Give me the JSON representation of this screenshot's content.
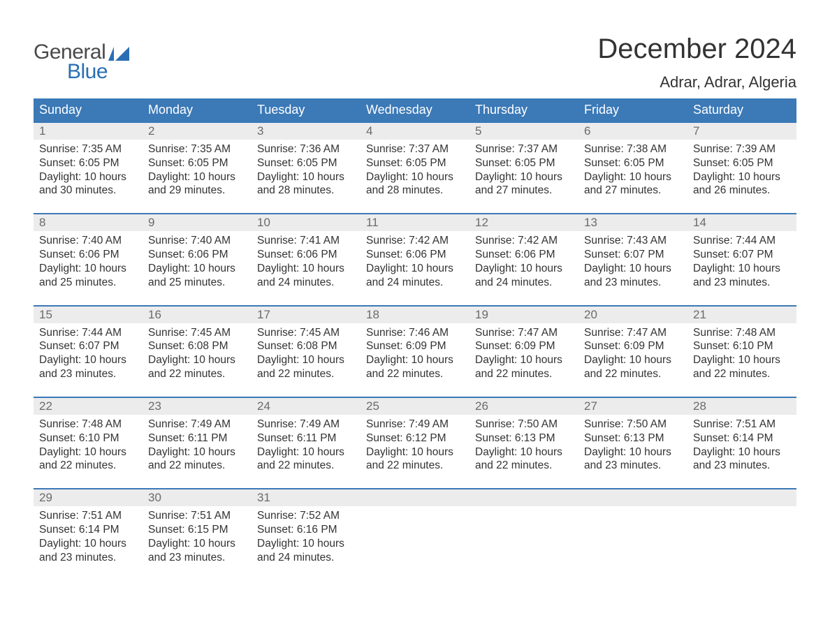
{
  "logo": {
    "general": "General",
    "blue": "Blue",
    "icon_color": "#2a6fb5"
  },
  "title": "December 2024",
  "location": "Adrar, Adrar, Algeria",
  "colors": {
    "header_bg": "#3b79b7",
    "header_text": "#ffffff",
    "daynum_bg": "#ececec",
    "daynum_text": "#6b6b6b",
    "body_text": "#333333",
    "row_border": "#3b79b7",
    "page_bg": "#ffffff"
  },
  "typography": {
    "title_fontsize": 40,
    "location_fontsize": 22,
    "dayheader_fontsize": 18,
    "daynum_fontsize": 17,
    "body_fontsize": 15.5
  },
  "day_headers": [
    "Sunday",
    "Monday",
    "Tuesday",
    "Wednesday",
    "Thursday",
    "Friday",
    "Saturday"
  ],
  "weeks": [
    [
      {
        "n": "1",
        "sunrise": "7:35 AM",
        "sunset": "6:05 PM",
        "daylight": "10 hours and 30 minutes."
      },
      {
        "n": "2",
        "sunrise": "7:35 AM",
        "sunset": "6:05 PM",
        "daylight": "10 hours and 29 minutes."
      },
      {
        "n": "3",
        "sunrise": "7:36 AM",
        "sunset": "6:05 PM",
        "daylight": "10 hours and 28 minutes."
      },
      {
        "n": "4",
        "sunrise": "7:37 AM",
        "sunset": "6:05 PM",
        "daylight": "10 hours and 28 minutes."
      },
      {
        "n": "5",
        "sunrise": "7:37 AM",
        "sunset": "6:05 PM",
        "daylight": "10 hours and 27 minutes."
      },
      {
        "n": "6",
        "sunrise": "7:38 AM",
        "sunset": "6:05 PM",
        "daylight": "10 hours and 27 minutes."
      },
      {
        "n": "7",
        "sunrise": "7:39 AM",
        "sunset": "6:05 PM",
        "daylight": "10 hours and 26 minutes."
      }
    ],
    [
      {
        "n": "8",
        "sunrise": "7:40 AM",
        "sunset": "6:06 PM",
        "daylight": "10 hours and 25 minutes."
      },
      {
        "n": "9",
        "sunrise": "7:40 AM",
        "sunset": "6:06 PM",
        "daylight": "10 hours and 25 minutes."
      },
      {
        "n": "10",
        "sunrise": "7:41 AM",
        "sunset": "6:06 PM",
        "daylight": "10 hours and 24 minutes."
      },
      {
        "n": "11",
        "sunrise": "7:42 AM",
        "sunset": "6:06 PM",
        "daylight": "10 hours and 24 minutes."
      },
      {
        "n": "12",
        "sunrise": "7:42 AM",
        "sunset": "6:06 PM",
        "daylight": "10 hours and 24 minutes."
      },
      {
        "n": "13",
        "sunrise": "7:43 AM",
        "sunset": "6:07 PM",
        "daylight": "10 hours and 23 minutes."
      },
      {
        "n": "14",
        "sunrise": "7:44 AM",
        "sunset": "6:07 PM",
        "daylight": "10 hours and 23 minutes."
      }
    ],
    [
      {
        "n": "15",
        "sunrise": "7:44 AM",
        "sunset": "6:07 PM",
        "daylight": "10 hours and 23 minutes."
      },
      {
        "n": "16",
        "sunrise": "7:45 AM",
        "sunset": "6:08 PM",
        "daylight": "10 hours and 22 minutes."
      },
      {
        "n": "17",
        "sunrise": "7:45 AM",
        "sunset": "6:08 PM",
        "daylight": "10 hours and 22 minutes."
      },
      {
        "n": "18",
        "sunrise": "7:46 AM",
        "sunset": "6:09 PM",
        "daylight": "10 hours and 22 minutes."
      },
      {
        "n": "19",
        "sunrise": "7:47 AM",
        "sunset": "6:09 PM",
        "daylight": "10 hours and 22 minutes."
      },
      {
        "n": "20",
        "sunrise": "7:47 AM",
        "sunset": "6:09 PM",
        "daylight": "10 hours and 22 minutes."
      },
      {
        "n": "21",
        "sunrise": "7:48 AM",
        "sunset": "6:10 PM",
        "daylight": "10 hours and 22 minutes."
      }
    ],
    [
      {
        "n": "22",
        "sunrise": "7:48 AM",
        "sunset": "6:10 PM",
        "daylight": "10 hours and 22 minutes."
      },
      {
        "n": "23",
        "sunrise": "7:49 AM",
        "sunset": "6:11 PM",
        "daylight": "10 hours and 22 minutes."
      },
      {
        "n": "24",
        "sunrise": "7:49 AM",
        "sunset": "6:11 PM",
        "daylight": "10 hours and 22 minutes."
      },
      {
        "n": "25",
        "sunrise": "7:49 AM",
        "sunset": "6:12 PM",
        "daylight": "10 hours and 22 minutes."
      },
      {
        "n": "26",
        "sunrise": "7:50 AM",
        "sunset": "6:13 PM",
        "daylight": "10 hours and 22 minutes."
      },
      {
        "n": "27",
        "sunrise": "7:50 AM",
        "sunset": "6:13 PM",
        "daylight": "10 hours and 23 minutes."
      },
      {
        "n": "28",
        "sunrise": "7:51 AM",
        "sunset": "6:14 PM",
        "daylight": "10 hours and 23 minutes."
      }
    ],
    [
      {
        "n": "29",
        "sunrise": "7:51 AM",
        "sunset": "6:14 PM",
        "daylight": "10 hours and 23 minutes."
      },
      {
        "n": "30",
        "sunrise": "7:51 AM",
        "sunset": "6:15 PM",
        "daylight": "10 hours and 23 minutes."
      },
      {
        "n": "31",
        "sunrise": "7:52 AM",
        "sunset": "6:16 PM",
        "daylight": "10 hours and 24 minutes."
      },
      null,
      null,
      null,
      null
    ]
  ],
  "labels": {
    "sunrise_prefix": "Sunrise: ",
    "sunset_prefix": "Sunset: ",
    "daylight_prefix": "Daylight: "
  }
}
